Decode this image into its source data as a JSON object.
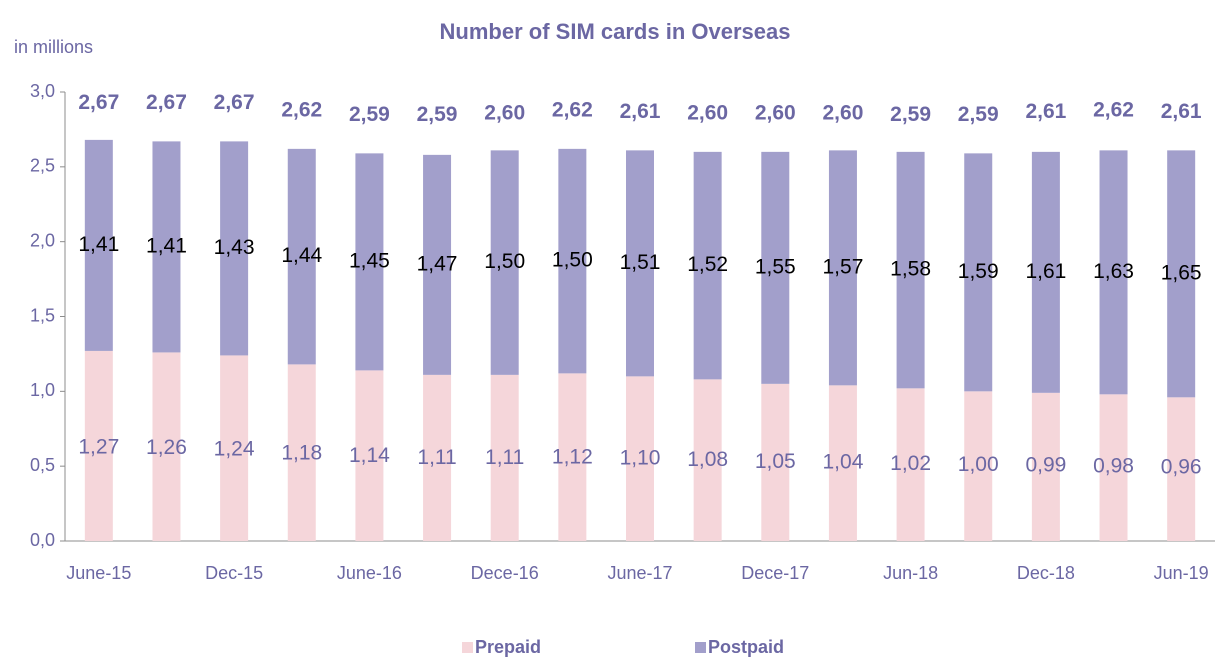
{
  "chart_data": {
    "type": "stacked_bar",
    "title": "Number of SIM cards in Overseas",
    "y_axis_label": "in millions",
    "categories": [
      "June-15",
      null,
      "Dec-15",
      null,
      "June-16",
      null,
      "Dece-16",
      null,
      "June-17",
      null,
      "Dece-17",
      null,
      "Jun-18",
      null,
      "Dec-18",
      null,
      "Jun-19"
    ],
    "series": [
      {
        "name": "Prepaid",
        "color": "#f5d6da",
        "label_color": "#6b67a3",
        "values": [
          1.27,
          1.26,
          1.24,
          1.18,
          1.14,
          1.11,
          1.11,
          1.12,
          1.1,
          1.08,
          1.05,
          1.04,
          1.02,
          1.0,
          0.99,
          0.98,
          0.96
        ],
        "value_labels": [
          "1,27",
          "1,26",
          "1,24",
          "1,18",
          "1,14",
          "1,11",
          "1,11",
          "1,12",
          "1,10",
          "1,08",
          "1,05",
          "1,04",
          "1,02",
          "1,00",
          "0,99",
          "0,98",
          "0,96"
        ]
      },
      {
        "name": "Postpaid",
        "color": "#a29fcb",
        "label_color": "#000000",
        "values": [
          1.41,
          1.41,
          1.43,
          1.44,
          1.45,
          1.47,
          1.5,
          1.5,
          1.51,
          1.52,
          1.55,
          1.57,
          1.58,
          1.59,
          1.61,
          1.63,
          1.65
        ],
        "value_labels": [
          "1,41",
          "1,41",
          "1,43",
          "1,44",
          "1,45",
          "1,47",
          "1,50",
          "1,50",
          "1,51",
          "1,52",
          "1,55",
          "1,57",
          "1,58",
          "1,59",
          "1,61",
          "1,63",
          "1,65"
        ]
      }
    ],
    "totals": [
      2.67,
      2.67,
      2.67,
      2.62,
      2.59,
      2.59,
      2.6,
      2.62,
      2.61,
      2.6,
      2.6,
      2.6,
      2.59,
      2.59,
      2.61,
      2.62,
      2.61
    ],
    "total_labels": [
      "2,67",
      "2,67",
      "2,67",
      "2,62",
      "2,59",
      "2,59",
      "2,60",
      "2,62",
      "2,61",
      "2,60",
      "2,60",
      "2,60",
      "2,59",
      "2,59",
      "2,61",
      "2,62",
      "2,61"
    ],
    "total_color": "#6b67a3",
    "ylim": [
      0,
      3
    ],
    "yticks": [
      {
        "value": 0,
        "label": "0,0"
      },
      {
        "value": 0.5,
        "label": "0,5"
      },
      {
        "value": 1,
        "label": "1,0"
      },
      {
        "value": 1.5,
        "label": "1,5"
      },
      {
        "value": 2,
        "label": "2,0"
      },
      {
        "value": 2.5,
        "label": "2,5"
      },
      {
        "value": 3,
        "label": "3,0"
      }
    ],
    "grid": false,
    "legend": "bottom"
  }
}
